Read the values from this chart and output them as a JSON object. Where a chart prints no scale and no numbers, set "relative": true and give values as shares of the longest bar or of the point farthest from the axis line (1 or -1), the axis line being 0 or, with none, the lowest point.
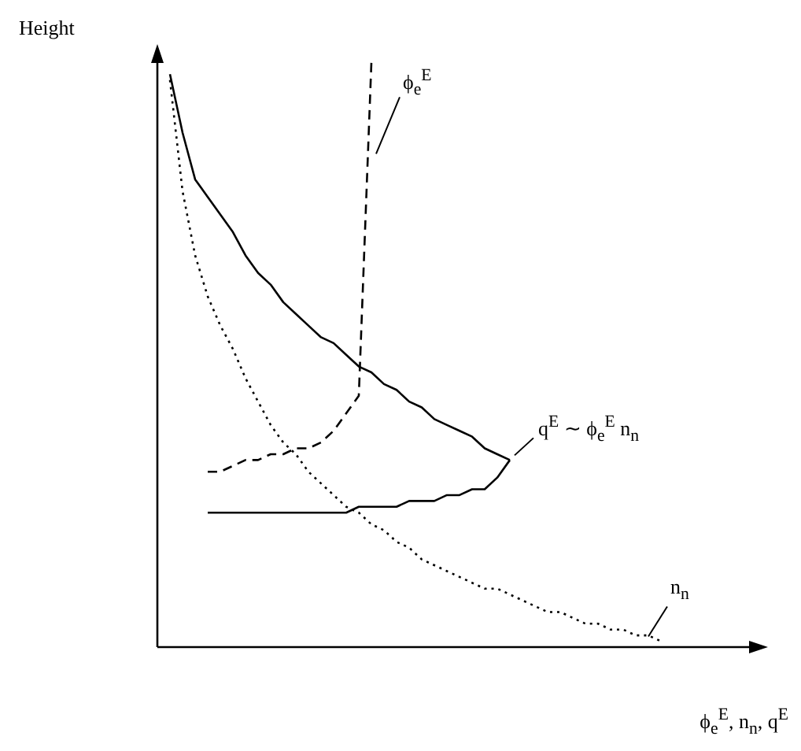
{
  "chart_data": {
    "type": "line",
    "relative": true,
    "ylabel": "Height",
    "xlabel": "ϕ$_{e}$$^{E}$, n$_{n}$, q$^{E}$",
    "legend": false,
    "marker": "none",
    "categories": [
      null,
      null,
      null,
      null,
      null,
      null,
      null,
      null,
      null,
      null,
      null,
      null,
      null,
      null,
      null,
      null,
      null,
      null,
      null,
      null,
      null,
      null,
      null,
      null,
      null,
      null,
      null,
      null,
      null,
      null,
      null,
      null,
      null,
      null,
      null,
      null,
      null,
      null,
      null,
      null,
      null
    ],
    "series": [
      {
        "name": "q$^{E}$ ∼ ϕ$_{e}$$^{E}$ n$_{n}$",
        "color": "#000000",
        "line_style": "solid",
        "values": [
          null,
          0.98,
          0.88,
          0.8,
          0.77,
          0.74,
          0.71,
          0.67,
          0.64,
          0.62,
          0.59,
          0.57,
          0.55,
          0.53,
          0.52,
          0.5,
          0.48,
          0.47,
          0.45,
          0.44,
          0.42,
          0.41,
          0.39,
          0.38,
          0.37,
          0.36,
          0.34,
          0.33,
          0.32,
          null,
          null,
          null,
          null,
          null,
          null,
          null,
          null,
          null,
          null,
          null,
          null
        ]
      },
      {
        "color": "#000000",
        "line_style": "solid",
        "values": [
          null,
          null,
          null,
          null,
          0.23,
          0.23,
          0.23,
          0.23,
          0.23,
          0.23,
          0.23,
          0.23,
          0.23,
          0.23,
          0.23,
          0.23,
          0.24,
          0.24,
          0.24,
          0.24,
          0.25,
          0.25,
          0.25,
          0.26,
          0.26,
          0.27,
          0.27,
          0.29,
          0.32,
          null,
          null,
          null,
          null,
          null,
          null,
          null,
          null,
          null,
          null,
          null,
          null
        ]
      },
      {
        "name": "ϕ$_{e}$$^{E}$",
        "color": "#000000",
        "line_style": "dashed",
        "values": [
          null,
          null,
          null,
          null,
          0.3,
          0.3,
          0.31,
          0.32,
          0.32,
          0.33,
          0.33,
          0.34,
          0.34,
          0.35,
          0.37,
          0.4,
          0.43,
          1,
          null,
          null,
          null,
          null,
          null,
          null,
          null,
          null,
          null,
          null,
          null,
          null,
          null,
          null,
          null,
          null,
          null,
          null,
          null,
          null,
          null,
          null,
          null
        ]
      },
      {
        "name": "n$_{n}$",
        "color": "#000000",
        "line_style": "dotted",
        "values": [
          null,
          0.97,
          0.78,
          0.67,
          0.6,
          0.55,
          0.51,
          0.46,
          0.42,
          0.38,
          0.35,
          0.33,
          0.3,
          0.28,
          0.26,
          0.24,
          0.23,
          0.21,
          0.2,
          0.18,
          0.17,
          0.15,
          0.14,
          0.13,
          0.12,
          0.11,
          0.1,
          0.1,
          0.09,
          0.08,
          0.07,
          0.06,
          0.06,
          0.05,
          0.04,
          0.04,
          0.03,
          0.03,
          0.02,
          0.02,
          0.01
        ]
      }
    ]
  }
}
